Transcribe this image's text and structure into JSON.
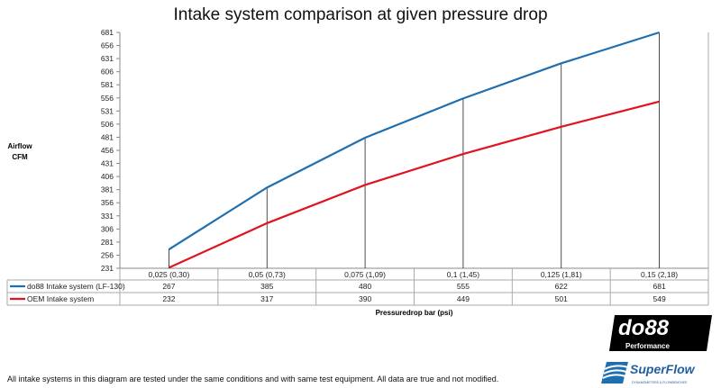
{
  "chart_data": {
    "type": "line",
    "title": "Intake system comparison at given pressure drop",
    "ylabel": [
      "Airflow",
      "CFM"
    ],
    "xlabel": "Pressuredrop bar (psi)",
    "categories": [
      "0,025 (0,30)",
      "0,05 (0,73)",
      "0,075 (1,09)",
      "0,1 (1,45)",
      "0,125 (1,81)",
      "0,15 (2,18)"
    ],
    "yticks": [
      231,
      256,
      281,
      306,
      331,
      356,
      381,
      406,
      431,
      456,
      481,
      506,
      531,
      556,
      581,
      606,
      631,
      656,
      681
    ],
    "ylim": [
      231,
      681
    ],
    "grid": false,
    "series": [
      {
        "name": "do88 Intake system (LF-130)",
        "color": "#1f6fb0",
        "values": [
          267,
          385,
          480,
          555,
          622,
          681
        ]
      },
      {
        "name": "OEM Intake system",
        "color": "#e0141e",
        "values": [
          232,
          317,
          390,
          449,
          501,
          549
        ]
      }
    ],
    "legend": "data-table"
  },
  "footer": "All intake systems in this diagram are tested under the same conditions and with same test equipment. All data are true and not modified.",
  "logos": {
    "do88": "do88 Performance",
    "superflow": "SuperFlow DYNAMOMETERS & FLOWBENCHES"
  }
}
